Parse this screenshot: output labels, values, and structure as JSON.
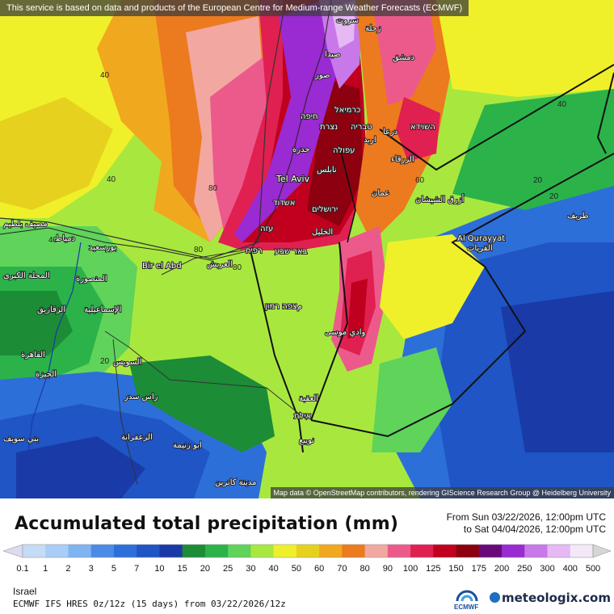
{
  "map": {
    "top_attribution": "This service is based on data and products of the European Centre for Medium-range Weather Forecasts (ECMWF)",
    "bottom_attribution": "Map data © OpenStreetMap contributors, rendering GIScience Research Group @ Heidelberg University",
    "cities": [
      {
        "name": "Tel Aviv"
      },
      {
        "name": "Al Qurayyat"
      },
      {
        "name": "Bir el Abd"
      },
      {
        "name": "صيدا"
      },
      {
        "name": "دمشق"
      },
      {
        "name": "صور"
      },
      {
        "name": "כרמיאל"
      },
      {
        "name": "חיפה"
      },
      {
        "name": "נצרת"
      },
      {
        "name": "טבריה"
      },
      {
        "name": "حدرة"
      },
      {
        "name": "עפולה"
      },
      {
        "name": "השוידא"
      },
      {
        "name": "نابلس"
      },
      {
        "name": "عمان"
      },
      {
        "name": "אשדוד"
      },
      {
        "name": "ירושלים"
      },
      {
        "name": "עזה"
      },
      {
        "name": "الخليل"
      },
      {
        "name": "באר שבע"
      },
      {
        "name": "רפיח"
      },
      {
        "name": "العريش"
      },
      {
        "name": "بورسعيد"
      },
      {
        "name": "مصيف بلطيم"
      },
      {
        "name": "دمياط"
      },
      {
        "name": "المحلة الكبرى"
      },
      {
        "name": "المنصورة"
      },
      {
        "name": "الإسماعيلية"
      },
      {
        "name": "الزقازيق"
      },
      {
        "name": "القاهرة"
      },
      {
        "name": "السويس"
      },
      {
        "name": "الجيزة"
      },
      {
        "name": "مצפה רמון"
      },
      {
        "name": "وادي موسى"
      },
      {
        "name": "العقبة"
      },
      {
        "name": "אילת"
      },
      {
        "name": "نويبع"
      },
      {
        "name": "ابو زنيمة"
      },
      {
        "name": "راس سدر"
      },
      {
        "name": "الزعفرانة"
      },
      {
        "name": "بني سويف"
      },
      {
        "name": "مدينة كاترين"
      },
      {
        "name": "طريف"
      },
      {
        "name": "أزرق الشيشان"
      },
      {
        "name": "سروت"
      },
      {
        "name": "زحلة"
      },
      {
        "name": "الزرقاء"
      },
      {
        "name": "اربد"
      },
      {
        "name": "درعا"
      },
      {
        "name": "القريات"
      }
    ],
    "contour_labels": [
      "40",
      "40",
      "40",
      "80",
      "80",
      "80",
      "60",
      "20",
      "20",
      "40",
      "20"
    ]
  },
  "legend": {
    "title": "Accumulated total precipitation (mm)",
    "from": "From Sun 03/22/2026, 12:00pm UTC",
    "to": "to Sat 04/04/2026, 12:00pm UTC",
    "levels": [
      "0.1",
      "1",
      "2",
      "3",
      "5",
      "7",
      "10",
      "15",
      "20",
      "25",
      "30",
      "40",
      "50",
      "60",
      "70",
      "80",
      "90",
      "100",
      "125",
      "150",
      "175",
      "200",
      "250",
      "300",
      "400",
      "500"
    ],
    "colors": [
      "#dcdcf0",
      "#c6dcf6",
      "#a8cdf7",
      "#7fb4f2",
      "#4a8be6",
      "#2d6fd9",
      "#1f55c4",
      "#1a3aa8",
      "#1c8c36",
      "#2bb34a",
      "#5fd35a",
      "#a8e83e",
      "#f0f02a",
      "#e6d21e",
      "#f0a81e",
      "#ec7a1e",
      "#f2a8a0",
      "#ec5a8c",
      "#e02050",
      "#c0001e",
      "#8c0010",
      "#6a0a7a",
      "#9a2ad2",
      "#c878e8",
      "#e6b8f4",
      "#f4e8f8",
      "#d6d6d6"
    ]
  },
  "footer": {
    "region": "Israel",
    "model": "ECMWF IFS HRES 0z/12z (15 days) from 03/22/2026/12z",
    "ecmwf_label": "ECMWF",
    "brand": "meteologix.com"
  }
}
